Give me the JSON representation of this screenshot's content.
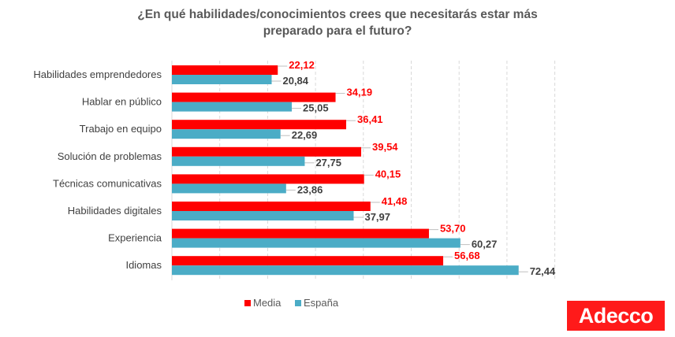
{
  "chart_data": {
    "type": "bar",
    "orientation": "horizontal",
    "title": "¿En qué habilidades/conocimientos crees que necesitarás estar más preparado  para el futuro?",
    "title_lines": [
      "¿En qué habilidades/conocimientos crees que necesitarás estar más",
      "preparado  para el futuro?"
    ],
    "categories": [
      "Habilidades emprendedores",
      "Hablar en público",
      "Trabajo en equipo",
      "Solución de problemas",
      "Técnicas comunicativas",
      "Habilidades digitales",
      "Experiencia",
      "Idiomas"
    ],
    "series": [
      {
        "name": "Media",
        "color": "#ff0000",
        "values": [
          22.12,
          34.19,
          36.41,
          39.54,
          40.15,
          41.48,
          53.7,
          56.68
        ],
        "labels": [
          "22,12",
          "34,19",
          "36,41",
          "39,54",
          "40,15",
          "41,48",
          "53,70",
          "56,68"
        ]
      },
      {
        "name": "España",
        "color": "#4bacc6",
        "values": [
          20.84,
          25.05,
          22.69,
          27.75,
          23.86,
          37.97,
          60.27,
          72.44
        ],
        "labels": [
          "20,84",
          "25,05",
          "22,69",
          "27,75",
          "23,86",
          "37,97",
          "60,27",
          "72,44"
        ]
      }
    ],
    "xlim": [
      0,
      80
    ],
    "grid": true,
    "legend_position": "bottom"
  },
  "logo": {
    "text": "Adecco",
    "color": "#ff1a1a"
  }
}
